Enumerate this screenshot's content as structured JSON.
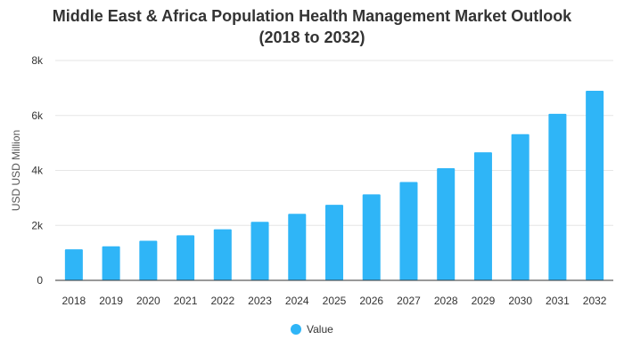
{
  "chart_data": {
    "type": "bar",
    "title_line1": "Middle East & Africa Population Health Management Market Outlook",
    "title_line2": "(2018 to 2032)",
    "xlabel": "",
    "ylabel": "USD USD Million",
    "categories": [
      "2018",
      "2019",
      "2020",
      "2021",
      "2022",
      "2023",
      "2024",
      "2025",
      "2026",
      "2027",
      "2028",
      "2029",
      "2030",
      "2031",
      "2032"
    ],
    "series": [
      {
        "name": "Value",
        "values": [
          1130,
          1240,
          1440,
          1640,
          1860,
          2130,
          2420,
          2750,
          3130,
          3580,
          4080,
          4660,
          5320,
          6060,
          6900
        ]
      }
    ],
    "ylim": [
      0,
      8000
    ],
    "yticks": [
      0,
      2000,
      4000,
      6000,
      8000
    ],
    "ytick_labels": [
      "0",
      "2k",
      "4k",
      "6k",
      "8k"
    ],
    "grid": true,
    "legend": "bottom-center",
    "colors": {
      "bar": "#2fb5f7",
      "grid": "#e6e6e6",
      "axis": "#333333"
    }
  }
}
